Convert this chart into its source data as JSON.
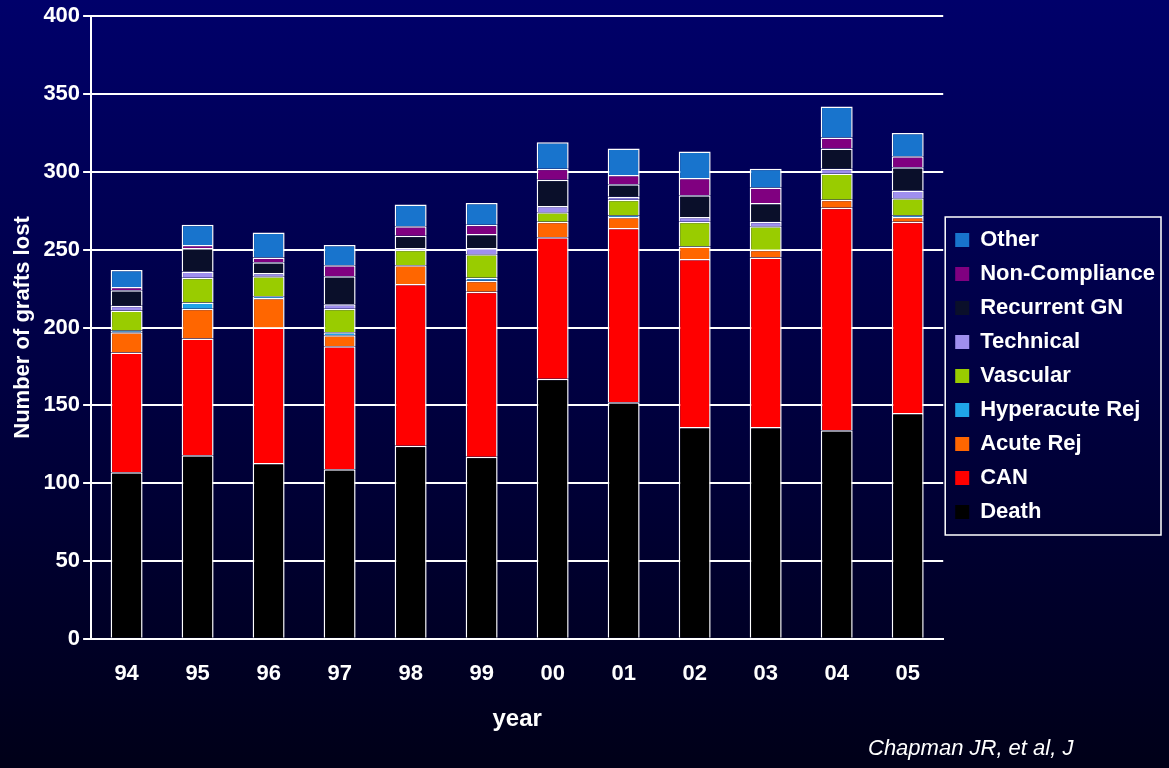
{
  "chart_data": {
    "type": "bar",
    "stacked": true,
    "xlabel": "year",
    "ylabel": "Number of grafts lost",
    "categories": [
      "94",
      "95",
      "96",
      "97",
      "98",
      "99",
      "00",
      "01",
      "02",
      "03",
      "04",
      "05"
    ],
    "series": [
      {
        "name": "Death",
        "color": "#000000",
        "values": [
          107,
          118,
          113,
          109,
          124,
          117,
          167,
          152,
          136,
          136,
          134,
          145
        ]
      },
      {
        "name": "CAN",
        "color": "#ff0000",
        "values": [
          77,
          75,
          87,
          79,
          104,
          106,
          91,
          112,
          108,
          109,
          143,
          123
        ]
      },
      {
        "name": "Acute Rej",
        "color": "#ff6600",
        "values": [
          13,
          19,
          19,
          7,
          12,
          7,
          10,
          7,
          8,
          5,
          5,
          3
        ]
      },
      {
        "name": "Hyperacute Rej",
        "color": "#1fa5e8",
        "values": [
          1,
          4,
          1,
          2,
          0,
          2,
          0,
          1,
          0,
          0,
          0,
          1
        ]
      },
      {
        "name": "Vascular",
        "color": "#99cc00",
        "values": [
          13,
          16,
          13,
          15,
          10,
          15,
          6,
          10,
          16,
          15,
          17,
          11
        ]
      },
      {
        "name": "Technical",
        "color": "#9f8fef",
        "values": [
          3,
          4,
          2,
          3,
          1,
          4,
          4,
          2,
          3,
          3,
          3,
          5
        ]
      },
      {
        "name": "Recurrent GN",
        "color": "#0a0f2a",
        "values": [
          10,
          15,
          7,
          18,
          8,
          9,
          17,
          8,
          14,
          12,
          13,
          15
        ]
      },
      {
        "name": "Non-Compliance",
        "color": "#800080",
        "values": [
          2,
          2,
          3,
          7,
          6,
          6,
          7,
          6,
          11,
          10,
          7,
          7
        ]
      },
      {
        "name": "Other",
        "color": "#1874cd",
        "values": [
          11,
          13,
          16,
          13,
          14,
          14,
          17,
          17,
          17,
          12,
          20,
          15
        ]
      }
    ],
    "ylim": [
      0,
      400
    ],
    "yticks": [
      0,
      50,
      100,
      150,
      200,
      250,
      300,
      350,
      400
    ],
    "grid": "y",
    "legend": "right",
    "annotations": [
      "Chapman JR, et al, J"
    ]
  }
}
